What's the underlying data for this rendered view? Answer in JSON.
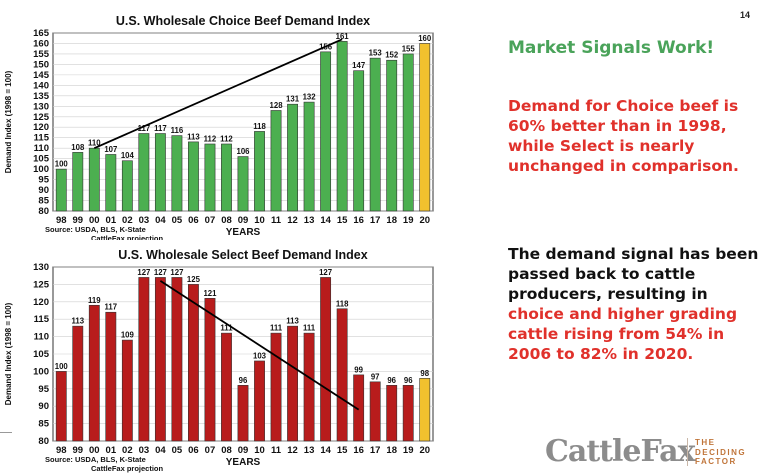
{
  "page_number": "14",
  "headline": "Market Signals Work!",
  "paragraph1": "Demand for Choice beef is 60% better than in 1998, while Select is nearly unchanged in comparison.",
  "paragraph2": {
    "part1": "The demand signal has been passed back to cattle producers, resulting in ",
    "highlight": "choice and higher grading cattle rising from 54% in 2006 to 82% in 2020."
  },
  "logo": {
    "name": "CattleFax",
    "tagline": [
      "THE",
      "DECIDING",
      "FACTOR"
    ]
  },
  "chart_data": [
    {
      "type": "bar",
      "title": "U.S. Wholesale Choice Beef Demand Index",
      "ylabel": "Demand Index (1998 = 100)",
      "xlabel": "YEARS",
      "source": [
        "Source: USDA, BLS, K-State",
        "CattleFax projection"
      ],
      "categories": [
        "98",
        "99",
        "00",
        "01",
        "02",
        "03",
        "04",
        "05",
        "06",
        "07",
        "08",
        "09",
        "10",
        "11",
        "12",
        "13",
        "14",
        "15",
        "16",
        "17",
        "18",
        "19",
        "20"
      ],
      "values": [
        100,
        108,
        110,
        107,
        104,
        117,
        117,
        116,
        113,
        112,
        112,
        106,
        118,
        128,
        131,
        132,
        156,
        161,
        147,
        153,
        152,
        155,
        160
      ],
      "yticks": [
        80,
        85,
        90,
        95,
        100,
        105,
        110,
        115,
        120,
        125,
        130,
        135,
        140,
        145,
        150,
        155,
        160,
        165
      ],
      "ylim": [
        80,
        165
      ],
      "bar_color": "#4caf50",
      "highlight_color": "#f2c12e",
      "highlight_category": "20",
      "trend": {
        "from": {
          "x": "00",
          "y": 110
        },
        "to": {
          "x": "15",
          "y": 162
        }
      }
    },
    {
      "type": "bar",
      "title": "U.S. Wholesale Select Beef Demand Index",
      "ylabel": "Demand Index (1998 = 100)",
      "xlabel": "YEARS",
      "source": [
        "Source: USDA, BLS, K-State",
        "CattleFax projection"
      ],
      "categories": [
        "98",
        "99",
        "00",
        "01",
        "02",
        "03",
        "04",
        "05",
        "06",
        "07",
        "08",
        "09",
        "10",
        "11",
        "12",
        "13",
        "14",
        "15",
        "16",
        "17",
        "18",
        "19",
        "20"
      ],
      "values": [
        100,
        113,
        119,
        117,
        109,
        127,
        127,
        127,
        125,
        121,
        111,
        96,
        103,
        111,
        113,
        111,
        127,
        118,
        99,
        97,
        96,
        96,
        98
      ],
      "yticks": [
        80,
        85,
        90,
        95,
        100,
        105,
        110,
        115,
        120,
        125,
        130
      ],
      "ylim": [
        80,
        130
      ],
      "bar_color": "#b81c1c",
      "highlight_color": "#f2c12e",
      "highlight_category": "20",
      "trend": {
        "from": {
          "x": "04",
          "y": 126
        },
        "to": {
          "x": "16",
          "y": 89
        }
      }
    }
  ]
}
